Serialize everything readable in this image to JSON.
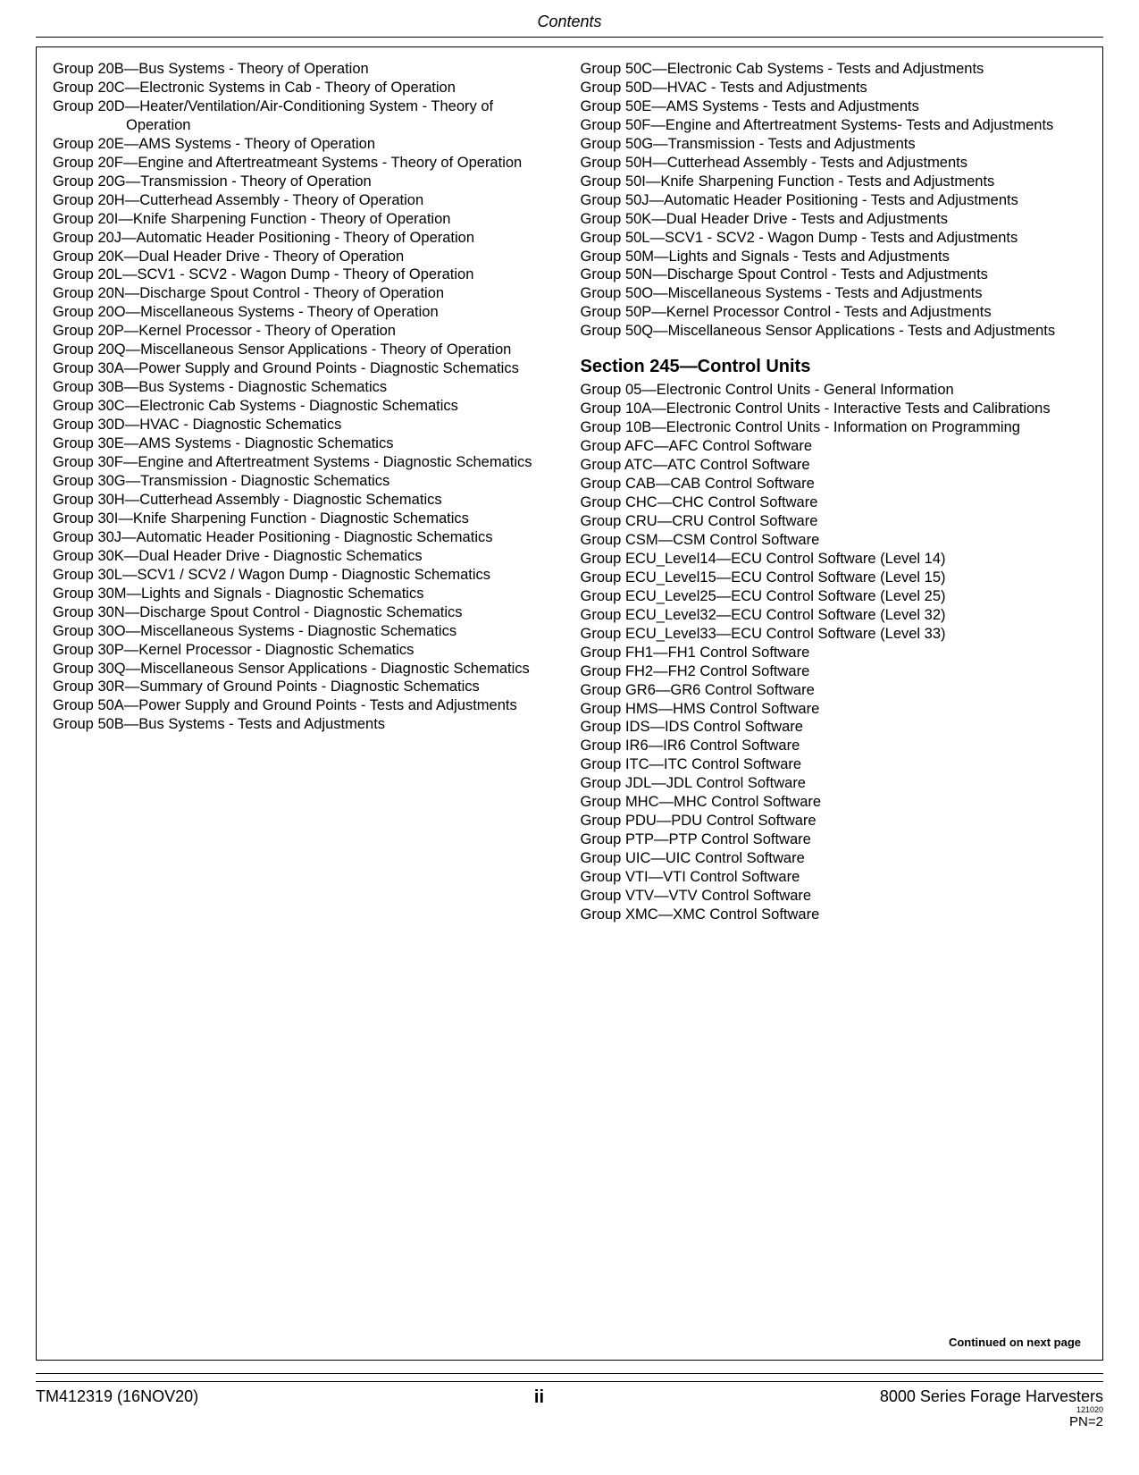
{
  "header": {
    "title": "Contents"
  },
  "leftCol": [
    "Group 20B—Bus Systems - Theory of Operation",
    "Group 20C—Electronic Systems in Cab - Theory of Operation",
    "Group 20D—Heater/Ventilation/Air-Conditioning System - Theory of Operation",
    "Group 20E—AMS Systems - Theory of Operation",
    "Group 20F—Engine and Aftertreatmeant Systems - Theory of Operation",
    "Group 20G—Transmission - Theory of Operation",
    "Group 20H—Cutterhead Assembly - Theory of Operation",
    "Group 20I—Knife Sharpening Function - Theory of Operation",
    "Group 20J—Automatic Header Positioning - Theory of Operation",
    "Group 20K—Dual Header Drive - Theory of Operation",
    "Group 20L—SCV1 - SCV2 - Wagon Dump - Theory of Operation",
    "Group 20N—Discharge Spout Control - Theory of Operation",
    "Group 20O—Miscellaneous Systems - Theory of Operation",
    "Group 20P—Kernel Processor - Theory of Operation",
    "Group 20Q—Miscellaneous Sensor Applications - Theory of Operation",
    "Group 30A—Power Supply and Ground Points - Diagnostic Schematics",
    "Group 30B—Bus Systems - Diagnostic Schematics",
    "Group 30C—Electronic Cab Systems - Diagnostic Schematics",
    "Group 30D—HVAC - Diagnostic Schematics",
    "Group 30E—AMS Systems - Diagnostic Schematics",
    "Group 30F—Engine and Aftertreatment Systems - Diagnostic Schematics",
    "Group 30G—Transmission - Diagnostic Schematics",
    "Group 30H—Cutterhead Assembly - Diagnostic Schematics",
    "Group 30I—Knife Sharpening Function - Diagnostic Schematics",
    "Group 30J—Automatic Header Positioning - Diagnostic Schematics",
    "Group 30K—Dual Header Drive - Diagnostic Schematics",
    "Group 30L—SCV1 / SCV2 / Wagon Dump - Diagnostic Schematics",
    "Group 30M—Lights and Signals - Diagnostic Schematics",
    "Group 30N—Discharge Spout Control - Diagnostic Schematics",
    "Group 30O—Miscellaneous Systems - Diagnostic Schematics",
    "Group 30P—Kernel Processor - Diagnostic Schematics",
    "Group 30Q—Miscellaneous Sensor Applications - Diagnostic Schematics",
    "Group 30R—Summary of Ground Points - Diagnostic Schematics",
    "Group 50A—Power Supply and Ground Points - Tests and Adjustments",
    "Group 50B—Bus Systems - Tests and Adjustments"
  ],
  "rightColTop": [
    "Group 50C—Electronic Cab Systems - Tests and Adjustments",
    "Group 50D—HVAC - Tests and Adjustments",
    "Group 50E—AMS Systems - Tests and Adjustments",
    "Group 50F—Engine and Aftertreatment Systems- Tests and Adjustments",
    "Group 50G—Transmission - Tests and Adjustments",
    "Group 50H—Cutterhead Assembly - Tests and Adjustments",
    "Group 50I—Knife Sharpening Function - Tests and Adjustments",
    "Group 50J—Automatic Header Positioning - Tests and Adjustments",
    "Group 50K—Dual Header Drive - Tests and Adjustments",
    "Group 50L—SCV1 - SCV2 - Wagon Dump - Tests and Adjustments",
    "Group 50M—Lights and Signals - Tests and Adjustments",
    "Group 50N—Discharge Spout Control - Tests and Adjustments",
    "Group 50O—Miscellaneous Systems - Tests and Adjustments",
    "Group 50P—Kernel Processor Control - Tests and Adjustments",
    "Group 50Q—Miscellaneous Sensor Applications - Tests and Adjustments"
  ],
  "section245": {
    "heading": "Section 245—Control Units"
  },
  "rightColBottom": [
    "Group 05—Electronic Control Units - General Information",
    "Group 10A—Electronic Control Units - Interactive Tests and Calibrations",
    "Group 10B—Electronic Control Units - Information on Programming",
    "Group AFC—AFC Control Software",
    "Group ATC—ATC Control Software",
    "Group CAB—CAB Control Software",
    "Group CHC—CHC Control Software",
    "Group CRU—CRU Control Software",
    "Group CSM—CSM Control Software",
    "Group ECU_Level14—ECU Control Software (Level 14)",
    "Group ECU_Level15—ECU Control Software (Level 15)",
    "Group ECU_Level25—ECU Control Software (Level 25)",
    "Group ECU_Level32—ECU Control Software (Level 32)",
    "Group ECU_Level33—ECU Control Software (Level 33)",
    "Group FH1—FH1 Control Software",
    "Group FH2—FH2 Control Software",
    "Group GR6—GR6 Control Software",
    "Group HMS—HMS Control Software",
    "Group IDS—IDS Control Software",
    "Group IR6—IR6 Control Software",
    "Group ITC—ITC Control Software",
    "Group JDL—JDL Control Software",
    "Group MHC—MHC Control Software",
    "Group PDU—PDU Control Software",
    "Group PTP—PTP Control Software",
    "Group UIC—UIC Control Software",
    "Group VTI—VTI Control Software",
    "Group VTV—VTV Control Software",
    "Group XMC—XMC Control Software"
  ],
  "continued": "Continued on next page",
  "footer": {
    "left": "TM412319 (16NOV20)",
    "center": "ii",
    "right": "8000 Series Forage Harvesters",
    "tiny": "121020",
    "pn": "PN=2"
  }
}
